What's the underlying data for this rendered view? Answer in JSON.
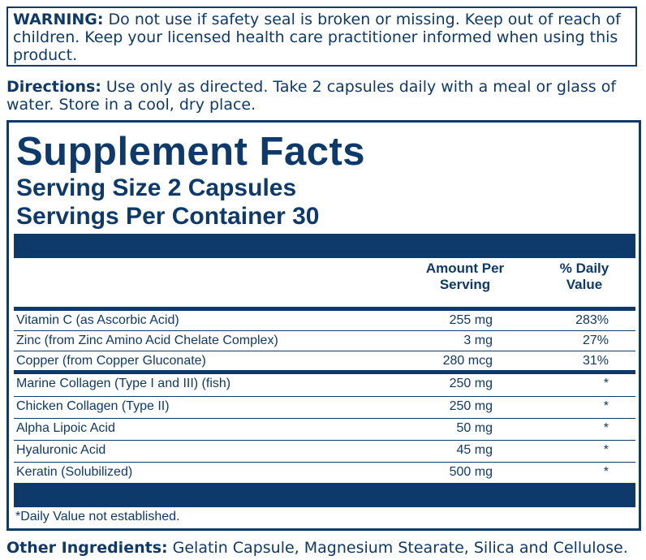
{
  "warning": {
    "label": "WARNING:",
    "text": " Do not use if safety seal is broken or missing. Keep out of reach of children. Keep your licensed health care practitioner informed when using this product."
  },
  "directions": {
    "label": "Directions:",
    "text": " Use only as directed. Take 2 capsules daily with a meal or glass of water. Store in a cool, dry place."
  },
  "facts": {
    "title": "Supplement Facts",
    "serving_size": "Serving Size 2 Capsules",
    "servings_per_container": "Servings Per Container 30",
    "header_amount": "Amount Per Serving",
    "header_dv": "% Daily Value",
    "rows": [
      {
        "name": "Vitamin C (as Ascorbic Acid)",
        "amount": "255 mg",
        "dv": "283%"
      },
      {
        "name": "Zinc (from Zinc Amino Acid Chelate Complex)",
        "amount": "3 mg",
        "dv": "27%"
      },
      {
        "name": "Copper (from Copper Gluconate)",
        "amount": "280 mcg",
        "dv": "31%"
      },
      {
        "name": "Marine Collagen (Type I and III) (fish)",
        "amount": "250 mg",
        "dv": "*"
      },
      {
        "name": "Chicken Collagen (Type II)",
        "amount": "250 mg",
        "dv": "*"
      },
      {
        "name": "Alpha Lipoic Acid",
        "amount": "50 mg",
        "dv": "*"
      },
      {
        "name": "Hyaluronic Acid",
        "amount": "45 mg",
        "dv": "*"
      },
      {
        "name": "Keratin (Solubilized)",
        "amount": "500 mg",
        "dv": "*"
      }
    ],
    "footnote": "*Daily Value not established."
  },
  "other_ingredients": {
    "label": "Other Ingredients:",
    "text": " Gelatin Capsule, Magnesium Stearate, Silica and Cellulose."
  },
  "colors": {
    "ink": "#0d3a6b",
    "background": "#ffffff"
  }
}
